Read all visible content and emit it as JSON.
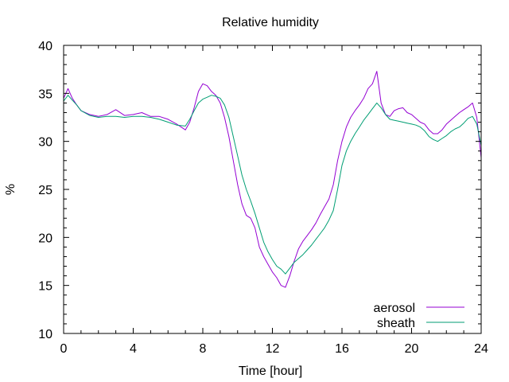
{
  "chart_data": {
    "type": "line",
    "title": "Relative humidity",
    "xlabel": "Time [hour]",
    "ylabel": "%",
    "xlim": [
      0,
      24
    ],
    "ylim": [
      10,
      40
    ],
    "x_ticks": [
      0,
      4,
      8,
      12,
      16,
      20,
      24
    ],
    "x_tick_labels": [
      "0",
      "4",
      "8",
      "12",
      "16",
      "20",
      "24"
    ],
    "y_ticks": [
      10,
      15,
      20,
      25,
      30,
      35,
      40
    ],
    "y_tick_labels": [
      "10",
      "15",
      "20",
      "25",
      "30",
      "35",
      "40"
    ],
    "grid": false,
    "legend_position": "bottom-right",
    "series": [
      {
        "name": "aerosol",
        "color": "#9400d3",
        "x": [
          0,
          0.25,
          0.5,
          0.75,
          1,
          1.5,
          2,
          2.5,
          3,
          3.5,
          4,
          4.5,
          5,
          5.5,
          6,
          6.5,
          7,
          7.25,
          7.5,
          7.75,
          8,
          8.25,
          8.5,
          8.75,
          9,
          9.25,
          9.5,
          9.75,
          10,
          10.25,
          10.5,
          10.75,
          11,
          11.25,
          11.5,
          11.75,
          12,
          12.25,
          12.5,
          12.75,
          13,
          13.25,
          13.5,
          13.75,
          14,
          14.25,
          14.5,
          14.75,
          15,
          15.25,
          15.5,
          15.75,
          16,
          16.25,
          16.5,
          16.75,
          17,
          17.25,
          17.5,
          17.75,
          18,
          18.25,
          18.5,
          18.75,
          19,
          19.25,
          19.5,
          19.75,
          20,
          20.25,
          20.5,
          20.75,
          21,
          21.25,
          21.5,
          21.75,
          22,
          22.25,
          22.5,
          22.75,
          23,
          23.25,
          23.5,
          23.75,
          24
        ],
        "y": [
          34.5,
          35.5,
          34.5,
          33.8,
          33.2,
          32.8,
          32.6,
          32.8,
          33.3,
          32.7,
          32.8,
          33.0,
          32.6,
          32.6,
          32.3,
          31.8,
          31.2,
          32.0,
          33.5,
          35.2,
          36.0,
          35.8,
          35.2,
          34.8,
          34.0,
          32.5,
          30.5,
          28.0,
          25.5,
          23.5,
          22.3,
          22.0,
          21.0,
          19.0,
          18.0,
          17.2,
          16.4,
          15.8,
          15.0,
          14.8,
          16.0,
          17.5,
          18.8,
          19.6,
          20.2,
          20.8,
          21.5,
          22.4,
          23.2,
          24.0,
          25.5,
          28.0,
          30.0,
          31.5,
          32.5,
          33.2,
          33.8,
          34.5,
          35.5,
          36.0,
          37.3,
          34.0,
          32.8,
          32.6,
          33.2,
          33.4,
          33.5,
          33.0,
          32.8,
          32.4,
          32.0,
          31.8,
          31.2,
          30.8,
          30.8,
          31.2,
          31.8,
          32.2,
          32.6,
          33.0,
          33.3,
          33.6,
          34.0,
          32.5,
          28.3
        ]
      },
      {
        "name": "sheath",
        "color": "#009e73",
        "x": [
          0,
          0.25,
          0.5,
          0.75,
          1,
          1.5,
          2,
          2.5,
          3,
          3.5,
          4,
          4.5,
          5,
          5.5,
          6,
          6.5,
          7,
          7.25,
          7.5,
          7.75,
          8,
          8.25,
          8.5,
          8.75,
          9,
          9.25,
          9.5,
          9.75,
          10,
          10.25,
          10.5,
          10.75,
          11,
          11.25,
          11.5,
          11.75,
          12,
          12.25,
          12.5,
          12.75,
          13,
          13.25,
          13.5,
          13.75,
          14,
          14.25,
          14.5,
          14.75,
          15,
          15.25,
          15.5,
          15.75,
          16,
          16.25,
          16.5,
          16.75,
          17,
          17.25,
          17.5,
          17.75,
          18,
          18.25,
          18.5,
          18.75,
          19,
          19.25,
          19.5,
          19.75,
          20,
          20.25,
          20.5,
          20.75,
          21,
          21.25,
          21.5,
          21.75,
          22,
          22.25,
          22.5,
          22.75,
          23,
          23.25,
          23.5,
          23.75,
          24
        ],
        "y": [
          34.2,
          34.8,
          34.3,
          33.8,
          33.2,
          32.7,
          32.5,
          32.6,
          32.6,
          32.5,
          32.6,
          32.6,
          32.5,
          32.3,
          32.0,
          31.7,
          31.6,
          32.3,
          33.2,
          34.0,
          34.4,
          34.6,
          34.8,
          34.7,
          34.5,
          33.8,
          32.5,
          30.5,
          28.5,
          26.5,
          25.0,
          23.8,
          22.5,
          21.0,
          19.5,
          18.5,
          17.7,
          17.0,
          16.7,
          16.2,
          16.8,
          17.4,
          17.8,
          18.2,
          18.7,
          19.2,
          19.8,
          20.4,
          21.0,
          21.8,
          22.8,
          25.0,
          27.5,
          29.0,
          30.0,
          30.8,
          31.5,
          32.2,
          32.8,
          33.4,
          34.0,
          33.5,
          32.8,
          32.3,
          32.2,
          32.1,
          32.0,
          31.9,
          31.8,
          31.7,
          31.5,
          31.1,
          30.5,
          30.2,
          30.0,
          30.3,
          30.6,
          31.0,
          31.3,
          31.5,
          31.9,
          32.4,
          32.6,
          31.8,
          29.6
        ]
      }
    ]
  }
}
